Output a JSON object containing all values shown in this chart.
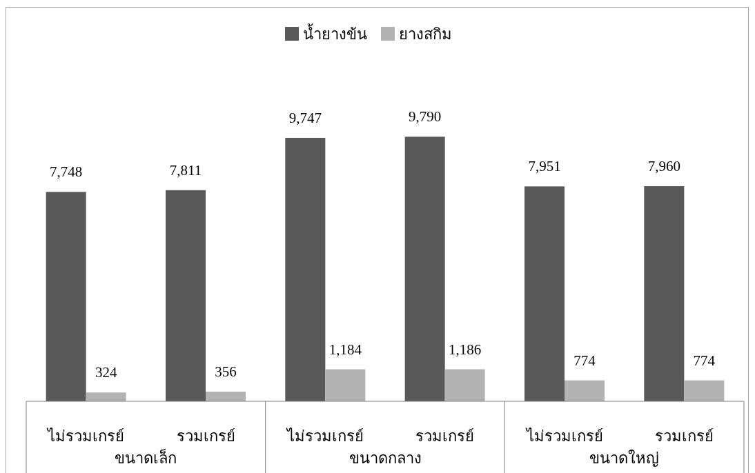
{
  "chart_data": {
    "type": "bar",
    "categories": [
      "ไม่รวมเกรย์",
      "รวมเกรย์",
      "ไม่รวมเกรย์",
      "รวมเกรย์",
      "ไม่รวมเกรย์",
      "รวมเกรย์"
    ],
    "series": [
      {
        "name": "น้ำยางข้น",
        "color": "#595959",
        "values": [
          7748,
          7811,
          9747,
          9790,
          7951,
          7960
        ],
        "value_labels": [
          "7,748",
          "7,811",
          "9,747",
          "9,790",
          "7,951",
          "7,960"
        ]
      },
      {
        "name": "ยางสกิม",
        "color": "#b3b3b3",
        "values": [
          324,
          356,
          1184,
          1186,
          774,
          774
        ],
        "value_labels": [
          "324",
          "356",
          "1,184",
          "1,186",
          "774",
          "774"
        ]
      }
    ],
    "annotations": [
      "ขนาดเล็ก",
      "ขนาดกลาง",
      "ขนาดใหญ่"
    ],
    "legend": "top"
  }
}
